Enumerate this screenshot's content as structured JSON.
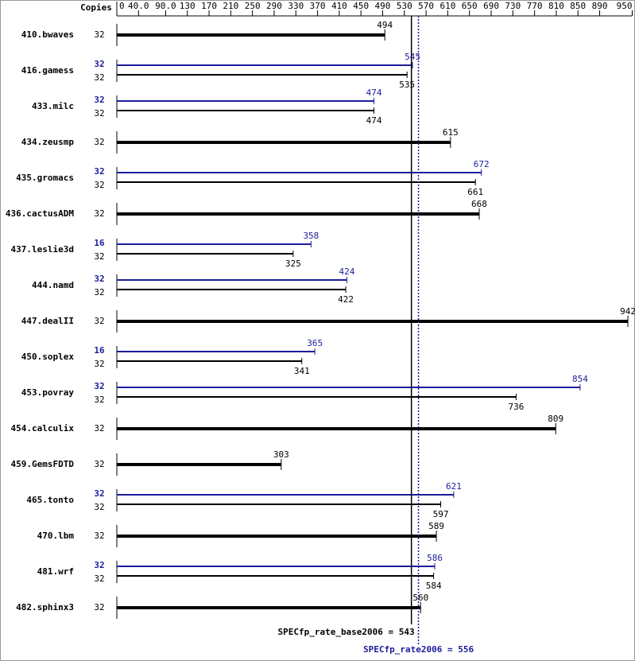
{
  "chart_data": {
    "type": "bar",
    "orientation": "horizontal",
    "copies_label": "Copies",
    "categories": [
      "410.bwaves",
      "416.gamess",
      "433.milc",
      "434.zeusmp",
      "435.gromacs",
      "436.cactusADM",
      "437.leslie3d",
      "444.namd",
      "447.dealII",
      "450.soplex",
      "453.povray",
      "454.calculix",
      "459.GemsFDTD",
      "465.tonto",
      "470.lbm",
      "481.wrf",
      "482.sphinx3"
    ],
    "series": [
      {
        "color": "#000000",
        "copies": [
          32,
          32,
          32,
          32,
          32,
          32,
          32,
          32,
          32,
          32,
          32,
          32,
          32,
          32,
          32,
          32,
          32
        ],
        "values": [
          494,
          535,
          474,
          615,
          661,
          668,
          325,
          422,
          942,
          341,
          736,
          809,
          303,
          597,
          589,
          584,
          560
        ]
      },
      {
        "color": "#1c1c9c",
        "copies": [
          null,
          32,
          32,
          null,
          32,
          null,
          16,
          32,
          null,
          16,
          32,
          null,
          null,
          32,
          null,
          32,
          null
        ],
        "values": [
          null,
          545,
          474,
          null,
          672,
          null,
          358,
          424,
          null,
          365,
          854,
          null,
          null,
          621,
          null,
          586,
          null
        ]
      }
    ],
    "xlim": [
      0,
      950
    ],
    "xticks": [
      0,
      {
        "value": 40,
        "label": "40.0"
      },
      {
        "value": 90,
        "label": "90.0"
      },
      130,
      170,
      210,
      250,
      290,
      330,
      370,
      410,
      450,
      490,
      530,
      570,
      610,
      650,
      690,
      730,
      770,
      810,
      850,
      890,
      950
    ],
    "reference_lines": [
      {
        "label": "SPECfp_rate_base2006 = 543",
        "value": 543,
        "color": "#000000",
        "style": "solid"
      },
      {
        "label": "SPECfp_rate2006 = 556",
        "value": 556,
        "color": "#1c1c9c",
        "style": "dotted"
      }
    ]
  }
}
